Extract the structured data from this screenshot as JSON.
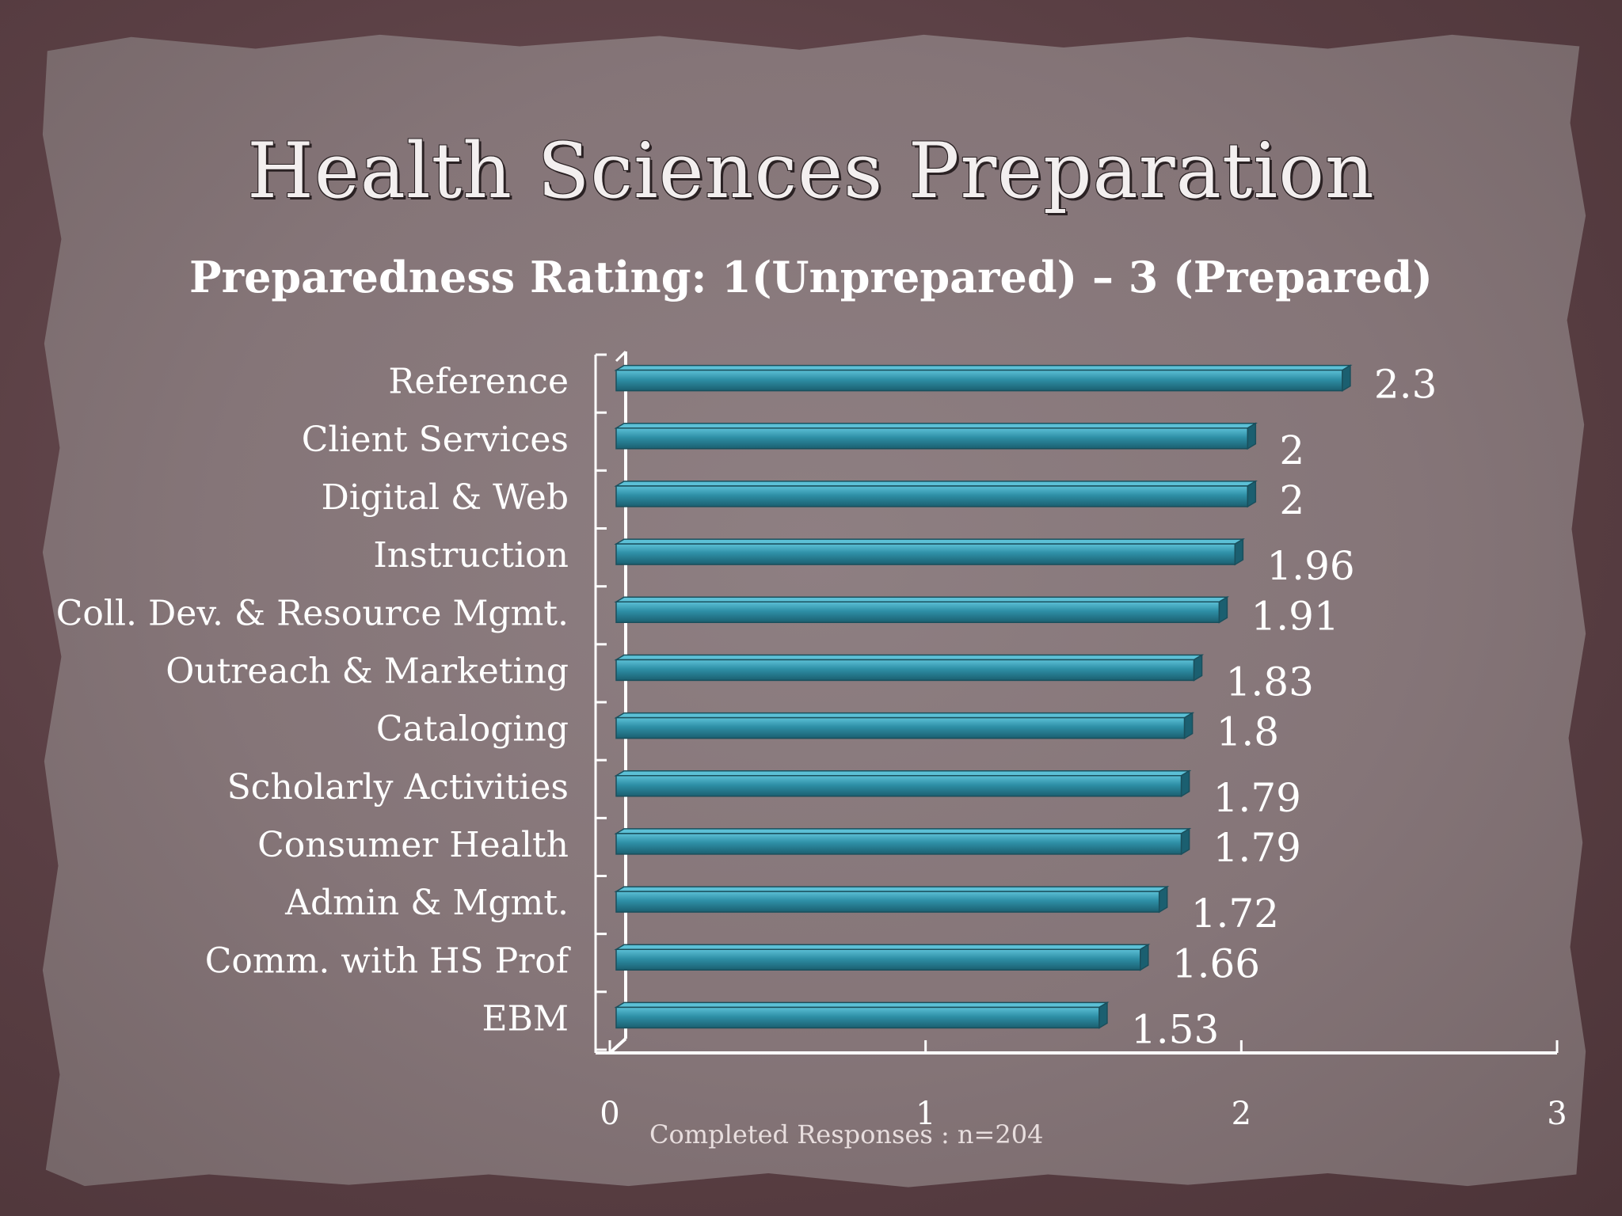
{
  "title": "Health Sciences Preparation",
  "subtitle": "Preparedness Rating: 1(Unprepared) – 3 (Prepared)",
  "footnote": "Completed Responses : n=204",
  "colors": {
    "bar": "#2e8fa6",
    "bar_highlight": "#5cc0d6",
    "bar_shadow": "#1b5f70",
    "axis": "#ffffff",
    "text": "#ffffff",
    "background_paper": "#857578",
    "background_frame": "#5a3f44"
  },
  "chart_data": {
    "type": "bar",
    "orientation": "horizontal",
    "title": "Health Sciences Preparation",
    "subtitle": "Preparedness Rating: 1(Unprepared) – 3 (Prepared)",
    "categories": [
      "Reference",
      "Client Services",
      "Digital & Web",
      "Instruction",
      "Coll. Dev. & Resource Mgmt.",
      "Outreach & Marketing",
      "Cataloging",
      "Scholarly Activities",
      "Consumer Health",
      "Admin & Mgmt.",
      "Comm. with HS Prof",
      "EBM"
    ],
    "values": [
      2.3,
      2,
      2,
      1.96,
      1.91,
      1.83,
      1.8,
      1.79,
      1.79,
      1.72,
      1.66,
      1.53
    ],
    "value_labels": [
      "2.3",
      "2",
      "2",
      "1.96",
      "1.91",
      "1.83",
      "1.8",
      "1.79",
      "1.79",
      "1.72",
      "1.66",
      "1.53"
    ],
    "xlim": [
      0,
      3
    ],
    "xticks": [
      0,
      1,
      2,
      3
    ],
    "xtick_labels": [
      "0",
      "1",
      "2",
      "3"
    ],
    "xlabel": "",
    "ylabel": "",
    "grid": false,
    "legend": "none",
    "footnote": "Completed Responses : n=204"
  }
}
